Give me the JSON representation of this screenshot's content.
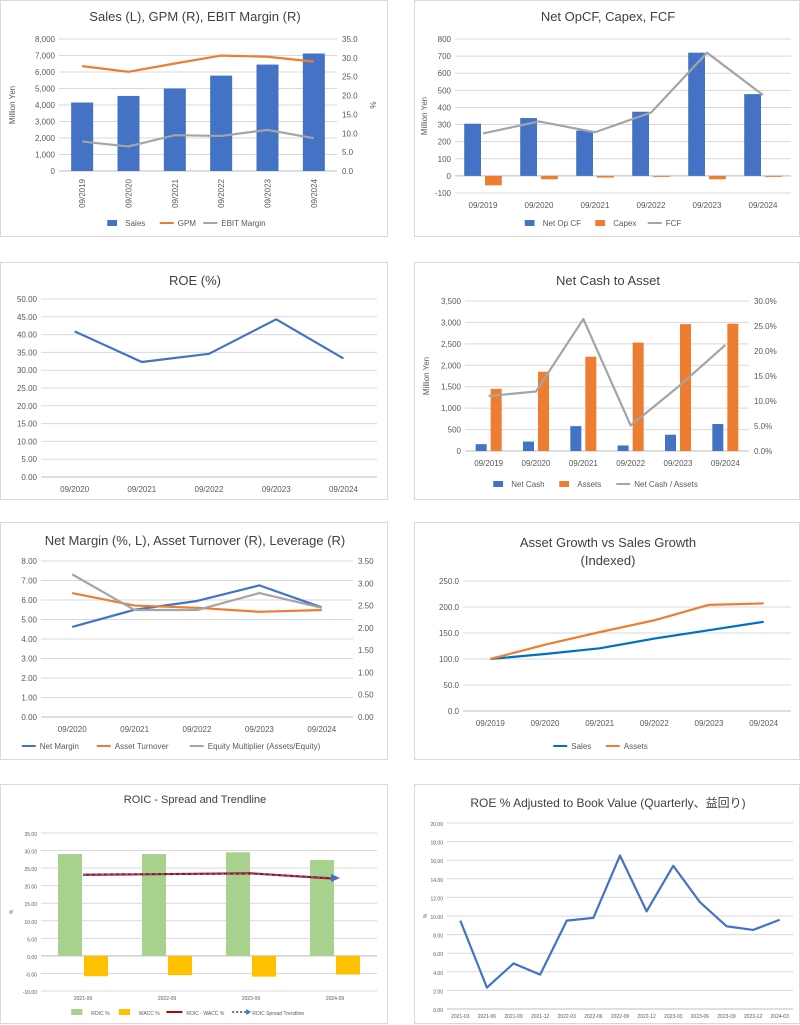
{
  "chart_data": [
    {
      "id": "c1",
      "type": "bar",
      "title": "Sales (L), GPM (R), EBIT Margin (R)",
      "ylabel": "Million Yen",
      "y2label": "%",
      "categories": [
        "09/2019",
        "09/2020",
        "09/2021",
        "09/2022",
        "09/2023",
        "09/2024"
      ],
      "ylim": [
        0,
        8000
      ],
      "y_ticks": [
        0,
        1000,
        2000,
        3000,
        4000,
        5000,
        6000,
        7000,
        8000
      ],
      "y_tick_labels": [
        "0",
        "1,000",
        "2,000",
        "3,000",
        "4,000",
        "5,000",
        "6,000",
        "7,000",
        "8,000"
      ],
      "y2lim": [
        0,
        35
      ],
      "y2_ticks": [
        0,
        5,
        10,
        15,
        20,
        25,
        30,
        35
      ],
      "y2_tick_labels": [
        "0.0",
        "5.0",
        "10.0",
        "15.0",
        "20.0",
        "25.0",
        "30.0",
        "35.0"
      ],
      "grid": true,
      "legend_position": "bottom",
      "x_label_rotate": true,
      "series": [
        {
          "name": "Sales",
          "kind": "bar",
          "axis": "left",
          "color": "#4472c4",
          "values": [
            4150,
            4550,
            5000,
            5780,
            6450,
            7120
          ]
        },
        {
          "name": "GPM",
          "kind": "line",
          "axis": "right",
          "color": "#ed7d31",
          "values": [
            27.8,
            26.3,
            28.5,
            30.6,
            30.3,
            29.0
          ]
        },
        {
          "name": "EBIT Margin",
          "kind": "line",
          "axis": "right",
          "color": "#a5a5a5",
          "values": [
            7.8,
            6.5,
            9.5,
            9.3,
            10.9,
            8.7
          ]
        }
      ]
    },
    {
      "id": "c2",
      "type": "bar",
      "title": "Net OpCF, Capex, FCF",
      "ylabel": "Million Yen",
      "categories": [
        "09/2019",
        "09/2020",
        "09/2021",
        "09/2022",
        "09/2023",
        "09/2024"
      ],
      "ylim": [
        -100,
        800
      ],
      "y_ticks": [
        -100,
        0,
        100,
        200,
        300,
        400,
        500,
        600,
        700,
        800
      ],
      "y_tick_labels": [
        "-100",
        "0",
        "100",
        "200",
        "300",
        "400",
        "500",
        "600",
        "700",
        "800"
      ],
      "grid": true,
      "legend_position": "bottom",
      "series": [
        {
          "name": "Net Op CF",
          "kind": "bar",
          "axis": "left",
          "color": "#4472c4",
          "values": [
            305,
            338,
            265,
            375,
            720,
            478
          ]
        },
        {
          "name": "Capex",
          "kind": "bar",
          "axis": "left",
          "color": "#ed7d31",
          "values": [
            -55,
            -20,
            -10,
            -5,
            -20,
            -5
          ]
        },
        {
          "name": "FCF",
          "kind": "line",
          "axis": "left",
          "color": "#a5a5a5",
          "values": [
            248,
            318,
            255,
            370,
            720,
            473
          ]
        }
      ]
    },
    {
      "id": "c3",
      "type": "line",
      "title": "ROE (%)",
      "categories": [
        "09/2020",
        "09/2021",
        "09/2022",
        "09/2023",
        "09/2024"
      ],
      "ylim": [
        0,
        50
      ],
      "y_ticks": [
        0,
        5,
        10,
        15,
        20,
        25,
        30,
        35,
        40,
        45,
        50
      ],
      "y_tick_labels": [
        "0.00",
        "5.00",
        "10.00",
        "15.00",
        "20.00",
        "25.00",
        "30.00",
        "35.00",
        "40.00",
        "45.00",
        "50.00"
      ],
      "grid": true,
      "series": [
        {
          "kind": "line",
          "axis": "left",
          "color": "#4472c4",
          "values": [
            40.9,
            32.3,
            34.6,
            44.3,
            33.3
          ]
        }
      ]
    },
    {
      "id": "c4",
      "type": "bar",
      "title": "Net Cash to Asset",
      "ylabel": "Million Yen",
      "categories": [
        "09/2019",
        "09/2020",
        "09/2021",
        "09/2022",
        "09/2023",
        "09/2024"
      ],
      "ylim": [
        0,
        3500
      ],
      "y_ticks": [
        0,
        500,
        1000,
        1500,
        2000,
        2500,
        3000,
        3500
      ],
      "y_tick_labels": [
        "0",
        "500",
        "1,000",
        "1,500",
        "2,000",
        "2,500",
        "3,000",
        "3,500"
      ],
      "y2lim": [
        0,
        30
      ],
      "y2_ticks": [
        0,
        5,
        10,
        15,
        20,
        25,
        30
      ],
      "y2_tick_labels": [
        "0.0%",
        "5.0%",
        "10.0%",
        "15.0%",
        "20.0%",
        "25.0%",
        "30.0%"
      ],
      "grid": true,
      "legend_position": "bottom",
      "series": [
        {
          "name": "Net Cash",
          "kind": "bar",
          "axis": "left",
          "color": "#4472c4",
          "values": [
            160,
            220,
            580,
            130,
            380,
            630
          ]
        },
        {
          "name": "Assets",
          "kind": "bar",
          "axis": "left",
          "color": "#ed7d31",
          "values": [
            1450,
            1850,
            2200,
            2530,
            2960,
            2970
          ]
        },
        {
          "name": "Net Cash / Assets",
          "kind": "line",
          "axis": "right",
          "color": "#a5a5a5",
          "values": [
            11.0,
            11.9,
            26.4,
            5.1,
            12.8,
            21.2
          ]
        }
      ]
    },
    {
      "id": "c5",
      "type": "line",
      "title": "Net Margin (%, L), Asset Turnover (R), Leverage (R)",
      "categories": [
        "09/2020",
        "09/2021",
        "09/2022",
        "09/2023",
        "09/2024"
      ],
      "ylim": [
        0,
        8
      ],
      "y_ticks": [
        0,
        1,
        2,
        3,
        4,
        5,
        6,
        7,
        8
      ],
      "y_tick_labels": [
        "0.00",
        "1.00",
        "2.00",
        "3.00",
        "4.00",
        "5.00",
        "6.00",
        "7.00",
        "8.00"
      ],
      "y2lim": [
        0,
        3.5
      ],
      "y2_ticks": [
        0,
        0.5,
        1,
        1.5,
        2,
        2.5,
        3,
        3.5
      ],
      "y2_tick_labels": [
        "0.00",
        "0.50",
        "1.00",
        "1.50",
        "2.00",
        "2.50",
        "3.00",
        "3.50"
      ],
      "grid": true,
      "legend_position": "bottom",
      "series": [
        {
          "name": "Net Margin",
          "kind": "line",
          "axis": "left",
          "color": "#4472c4",
          "values": [
            4.62,
            5.5,
            5.95,
            6.75,
            5.62
          ]
        },
        {
          "name": "Asset Turnover",
          "kind": "line",
          "axis": "right",
          "color": "#ed7d31",
          "values": [
            2.78,
            2.5,
            2.45,
            2.36,
            2.4
          ]
        },
        {
          "name": "Equity Multiplier (Assets/Equity)",
          "kind": "line",
          "axis": "right",
          "color": "#a5a5a5",
          "values": [
            3.2,
            2.4,
            2.4,
            2.78,
            2.45
          ]
        }
      ]
    },
    {
      "id": "c6",
      "type": "line",
      "title": "Asset Growth vs Sales Growth",
      "subtitle": "(Indexed)",
      "categories": [
        "09/2019",
        "09/2020",
        "09/2021",
        "09/2022",
        "09/2023",
        "09/2024"
      ],
      "ylim": [
        0,
        250
      ],
      "y_ticks": [
        0,
        50,
        100,
        150,
        200,
        250
      ],
      "y_tick_labels": [
        "0.0",
        "50.0",
        "100.0",
        "150.0",
        "200.0",
        "250.0"
      ],
      "grid": true,
      "legend_position": "bottom",
      "series": [
        {
          "name": "Sales",
          "kind": "line",
          "axis": "left",
          "color": "#0070c0",
          "values": [
            100,
            109.6,
            120.5,
            139.3,
            155.4,
            171.6
          ]
        },
        {
          "name": "Assets",
          "kind": "line",
          "axis": "left",
          "color": "#ed7d31",
          "values": [
            100,
            127.6,
            151.7,
            174.5,
            204.1,
            206.9
          ]
        }
      ]
    },
    {
      "id": "c7",
      "type": "bar",
      "title": "ROIC - Spread and Trendline",
      "ylabel": "%",
      "categories": [
        "2021-09",
        "2022-09",
        "2023-09",
        "2024-09"
      ],
      "ylim": [
        -10,
        35
      ],
      "y_ticks": [
        -10,
        -5,
        0,
        5,
        10,
        15,
        20,
        25,
        30,
        35
      ],
      "y_tick_labels": [
        "-10.00",
        "-5.00",
        "0.00",
        "5.00",
        "10.00",
        "15.00",
        "20.00",
        "25.00",
        "30.00",
        "35.00"
      ],
      "grid": true,
      "legend_position": "bottom",
      "series": [
        {
          "name": "ROIC %",
          "kind": "bar",
          "axis": "left",
          "color": "#a9d18e",
          "values": [
            29.0,
            29.0,
            29.5,
            27.3
          ]
        },
        {
          "name": "WACC %",
          "kind": "bar",
          "axis": "left",
          "color": "#ffc000",
          "values": [
            -5.8,
            -5.5,
            -5.9,
            -5.3
          ]
        },
        {
          "name": "ROIC - WACC %",
          "kind": "line",
          "axis": "left",
          "color": "#c00000",
          "values": [
            23.1,
            23.3,
            23.5,
            22.0
          ]
        },
        {
          "name": "ROIC Spread Trendline",
          "kind": "line",
          "axis": "left",
          "color": "#4472c4",
          "dashed": true,
          "arrow": true,
          "values": [
            23.2,
            23.3,
            23.4,
            22.2
          ]
        }
      ]
    },
    {
      "id": "c8",
      "type": "line",
      "title": "ROE % Adjusted to Book Value (Quarterly、益回り)",
      "ylabel": "%",
      "categories": [
        "2021-03",
        "2021-06",
        "2021-09",
        "2021-12",
        "2022-03",
        "2022-06",
        "2022-09",
        "2022-12",
        "2023-03",
        "2023-06",
        "2023-09",
        "2023-12",
        "2024-03"
      ],
      "ylim": [
        0,
        20
      ],
      "y_ticks": [
        0,
        2,
        4,
        6,
        8,
        10,
        12,
        14,
        16,
        18,
        20
      ],
      "y_tick_labels": [
        "0.00",
        "2.00",
        "4.00",
        "6.00",
        "8.00",
        "10.00",
        "12.00",
        "14.00",
        "16.00",
        "18.00",
        "20.00"
      ],
      "grid": true,
      "series": [
        {
          "kind": "line",
          "axis": "left",
          "color": "#4472c4",
          "values": [
            9.5,
            2.3,
            4.9,
            3.7,
            9.5,
            9.8,
            16.5,
            10.5,
            15.4,
            11.5,
            8.9,
            8.5,
            9.6
          ]
        }
      ]
    }
  ]
}
